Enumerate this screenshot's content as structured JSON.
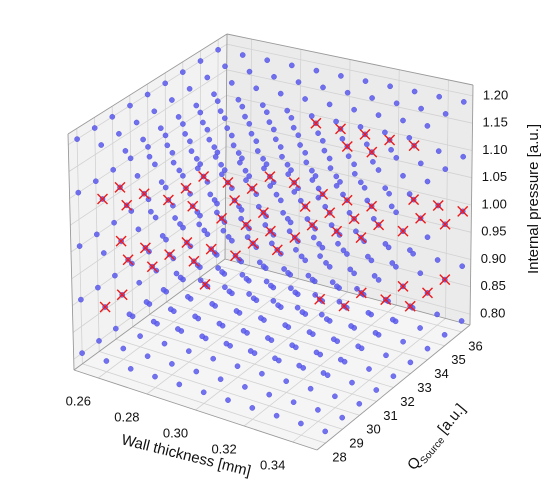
{
  "chart_data": {
    "type": "scatter",
    "projection": "3d",
    "grid": true,
    "x_axis": {
      "label": "Wall thickness [mm]",
      "ticks": [
        "0.26",
        "0.28",
        "0.30",
        "0.32",
        "0.34"
      ],
      "tick_values": [
        0.26,
        0.28,
        0.3,
        0.32,
        0.34
      ],
      "range": [
        0.25,
        0.35
      ]
    },
    "y_axis": {
      "label_main": "Q",
      "label_sub": "Source",
      "label_unit": " [a.u.]",
      "ticks": [
        "28",
        "29",
        "30",
        "31",
        "32",
        "33",
        "34",
        "35",
        "36"
      ],
      "tick_values": [
        28,
        29,
        30,
        31,
        32,
        33,
        34,
        35,
        36
      ],
      "range": [
        27.5,
        36.5
      ]
    },
    "z_axis": {
      "label": "Internal pressure [a.u.]",
      "ticks": [
        "0.80",
        "0.85",
        "0.90",
        "0.95",
        "1.00",
        "1.05",
        "1.10",
        "1.15",
        "1.20"
      ],
      "tick_values": [
        0.8,
        0.85,
        0.9,
        0.95,
        1.0,
        1.05,
        1.1,
        1.15,
        1.2
      ],
      "range": [
        0.78,
        1.22
      ]
    },
    "series": [
      {
        "marker": "circle",
        "color": "#5a5af0",
        "grid_x": [
          0.25,
          0.26,
          0.27,
          0.28,
          0.29,
          0.3,
          0.31,
          0.32,
          0.33,
          0.34,
          0.35
        ],
        "grid_y": [
          28,
          29,
          30,
          31,
          32,
          33,
          34,
          35,
          36
        ],
        "grid_z": [
          0.8,
          0.9,
          1.0,
          1.1,
          1.2
        ]
      },
      {
        "marker": "x",
        "color": "#f01818",
        "points": [
          [
            0.34,
            35,
            1.0
          ],
          [
            0.35,
            35,
            1.0
          ],
          [
            0.34,
            36,
            1.0
          ],
          [
            0.35,
            36,
            1.0
          ],
          [
            0.33,
            36,
            1.0
          ],
          [
            0.33,
            34,
            1.0
          ],
          [
            0.34,
            34,
            1.0
          ],
          [
            0.33,
            33,
            1.0
          ],
          [
            0.31,
            33,
            1.0
          ],
          [
            0.32,
            33,
            1.0
          ],
          [
            0.31,
            34,
            1.0
          ],
          [
            0.32,
            34,
            1.0
          ],
          [
            0.32,
            35,
            1.0
          ],
          [
            0.3,
            34,
            1.0
          ],
          [
            0.3,
            35,
            1.0
          ],
          [
            0.31,
            35,
            1.0
          ],
          [
            0.31,
            35,
            1.1
          ],
          [
            0.32,
            35,
            1.1
          ],
          [
            0.32,
            36,
            1.1
          ],
          [
            0.33,
            36,
            1.1
          ],
          [
            0.29,
            36,
            1.1
          ],
          [
            0.3,
            36,
            1.1
          ],
          [
            0.31,
            36,
            1.1
          ],
          [
            0.34,
            34,
            0.9
          ],
          [
            0.35,
            34,
            0.9
          ],
          [
            0.35,
            35,
            0.9
          ],
          [
            0.35,
            33,
            0.9
          ],
          [
            0.33,
            33,
            0.9
          ],
          [
            0.34,
            33,
            0.9
          ],
          [
            0.32,
            32,
            0.9
          ],
          [
            0.33,
            32,
            0.9
          ],
          [
            0.26,
            28,
            1.1
          ],
          [
            0.27,
            28,
            1.1
          ],
          [
            0.28,
            29,
            1.1
          ],
          [
            0.29,
            29,
            1.1
          ],
          [
            0.28,
            30,
            1.1
          ],
          [
            0.3,
            30,
            1.1
          ],
          [
            0.29,
            31,
            1.1
          ],
          [
            0.3,
            31,
            1.1
          ],
          [
            0.3,
            32,
            1.1
          ],
          [
            0.31,
            32,
            1.1
          ],
          [
            0.26,
            29,
            1.1
          ],
          [
            0.27,
            29,
            1.1
          ],
          [
            0.28,
            31,
            1.1
          ],
          [
            0.27,
            28,
            1.0
          ],
          [
            0.28,
            28,
            1.0
          ],
          [
            0.27,
            29,
            1.0
          ],
          [
            0.28,
            29,
            1.0
          ],
          [
            0.29,
            30,
            1.0
          ],
          [
            0.3,
            30,
            1.0
          ],
          [
            0.3,
            31,
            1.0
          ],
          [
            0.28,
            30,
            1.0
          ],
          [
            0.31,
            31,
            1.0
          ],
          [
            0.31,
            32,
            1.0
          ],
          [
            0.3,
            32,
            1.0
          ],
          [
            0.29,
            32,
            1.0
          ],
          [
            0.26,
            28,
            0.9
          ],
          [
            0.26,
            29,
            0.9
          ],
          [
            0.28,
            31,
            0.9
          ],
          [
            0.26,
            29,
            1.0
          ],
          [
            0.29,
            29,
            1.0
          ],
          [
            0.29,
            33,
            1.0
          ],
          [
            0.28,
            32,
            1.0
          ]
        ]
      }
    ]
  }
}
